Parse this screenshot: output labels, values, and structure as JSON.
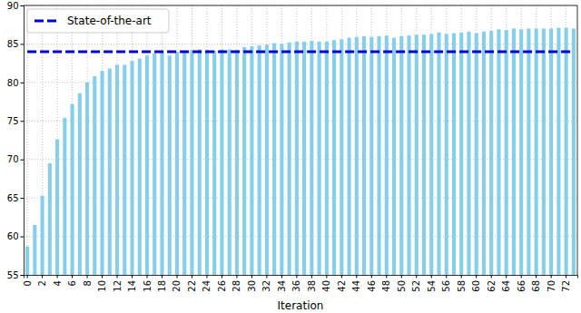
{
  "chart_data": {
    "type": "bar",
    "x_label": "Iteration",
    "categories": [
      "0",
      null,
      "2",
      null,
      "4",
      null,
      "6",
      null,
      "8",
      null,
      "10",
      null,
      "12",
      null,
      "14",
      null,
      "16",
      null,
      "18",
      null,
      "20",
      null,
      "22",
      null,
      "24",
      null,
      "26",
      null,
      "28",
      null,
      "30",
      null,
      "32",
      null,
      "34",
      null,
      "36",
      null,
      "38",
      null,
      "40",
      null,
      "42",
      null,
      "44",
      null,
      "46",
      null,
      "48",
      null,
      "50",
      null,
      "52",
      null,
      "54",
      null,
      "56",
      null,
      "58",
      null,
      "60",
      null,
      "62",
      null,
      "64",
      null,
      "66",
      null,
      "68",
      null,
      "70",
      null,
      "72",
      null
    ],
    "series": [
      {
        "type": "bar",
        "color": "#87ceeb",
        "values": [
          58.7,
          61.5,
          65.3,
          69.5,
          72.6,
          75.4,
          77.2,
          78.6,
          80.0,
          80.8,
          81.5,
          81.8,
          82.3,
          82.3,
          82.8,
          83.1,
          83.5,
          83.8,
          84.0,
          83.5,
          84.0,
          84.1,
          84.2,
          84.3,
          84.2,
          84.1,
          84.3,
          84.3,
          84.2,
          84.6,
          84.7,
          84.8,
          84.9,
          85.1,
          85.0,
          85.2,
          85.3,
          85.3,
          85.4,
          85.3,
          85.3,
          85.5,
          85.6,
          85.8,
          85.9,
          86.0,
          85.9,
          86.0,
          86.1,
          85.8,
          86.0,
          86.1,
          86.2,
          86.2,
          86.3,
          86.5,
          86.3,
          86.4,
          86.5,
          86.6,
          86.4,
          86.6,
          86.7,
          86.9,
          86.8,
          87.0,
          86.9,
          87.0,
          87.0,
          87.0,
          87.0,
          87.1,
          87.1,
          87.0
        ]
      },
      {
        "name": "State-of-the-art",
        "type": "line",
        "line_style": "dashed",
        "color": "#0000cd",
        "values": [
          84,
          84,
          84,
          84,
          84,
          84,
          84,
          84,
          84,
          84,
          84,
          84,
          84,
          84,
          84,
          84,
          84,
          84,
          84,
          84,
          84,
          84,
          84,
          84,
          84,
          84,
          84,
          84,
          84,
          84,
          84,
          84,
          84,
          84,
          84,
          84,
          84,
          84,
          84,
          84,
          84,
          84,
          84,
          84,
          84,
          84,
          84,
          84,
          84,
          84,
          84,
          84,
          84,
          84,
          84,
          84,
          84,
          84,
          84,
          84,
          84,
          84,
          84,
          84,
          84,
          84,
          84,
          84,
          84,
          84,
          84,
          84,
          84,
          84
        ]
      }
    ],
    "ylim": [
      55,
      90
    ],
    "yticks": [
      55,
      60,
      65,
      70,
      75,
      80,
      85,
      90
    ],
    "grid": true,
    "legend": "upper left"
  }
}
